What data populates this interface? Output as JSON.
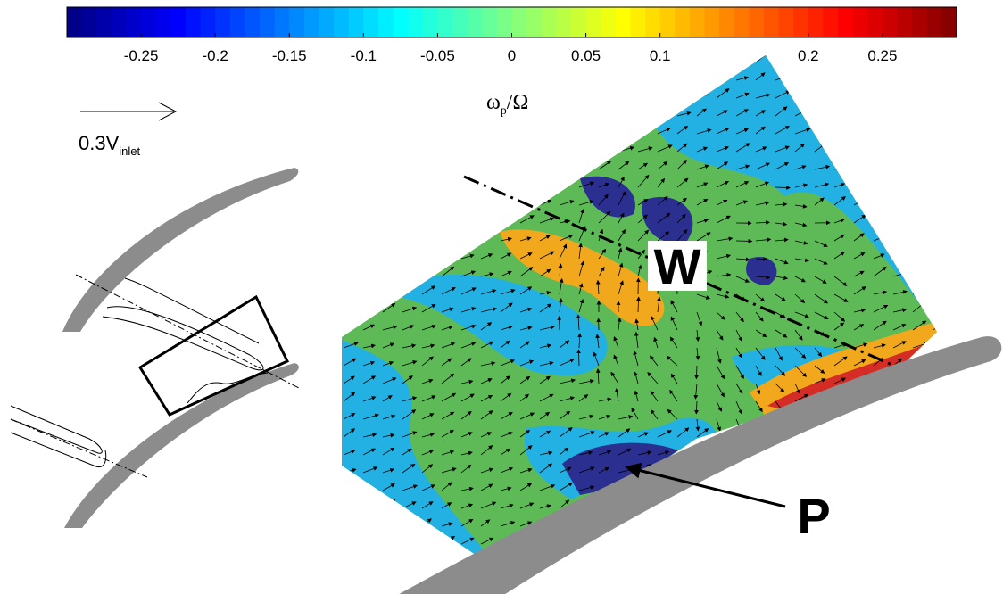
{
  "colorbar": {
    "label": {
      "main": "ω",
      "sub": "p",
      "rest": "/Ω"
    },
    "lim": [
      -0.3,
      0.3
    ],
    "ticks": [
      -0.25,
      -0.2,
      -0.15,
      -0.1,
      -0.05,
      0,
      0.05,
      0.1,
      0.2,
      0.25
    ]
  },
  "reference_vector": {
    "main": "0.3V",
    "sub": "inlet"
  },
  "annotations": {
    "wake": "W",
    "pressure_side": "P"
  }
}
